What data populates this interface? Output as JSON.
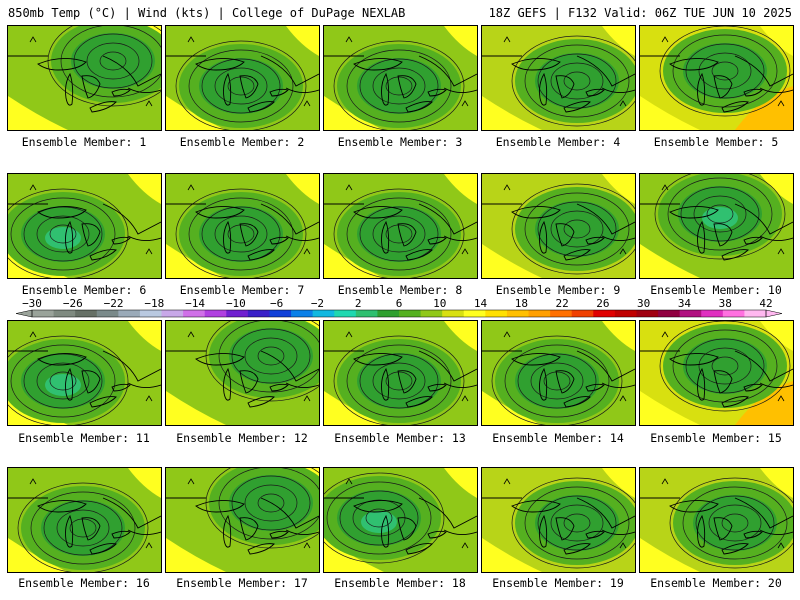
{
  "header": {
    "left": "850mb Temp (°C) | Wind (kts) | College of DuPage NEXLAB",
    "right": "18Z GEFS | F132 Valid: 06Z TUE JUN 10 2025"
  },
  "panels": [
    {
      "label": "Ensemble Member: 1",
      "pattern": "ne-low"
    },
    {
      "label": "Ensemble Member: 2",
      "pattern": "lakes-low"
    },
    {
      "label": "Ensemble Member: 3",
      "pattern": "lakes-low"
    },
    {
      "label": "Ensemble Member: 4",
      "pattern": "east-low"
    },
    {
      "label": "Ensemble Member: 5",
      "pattern": "warm-sw"
    },
    {
      "label": "Ensemble Member: 6",
      "pattern": "west-low"
    },
    {
      "label": "Ensemble Member: 7",
      "pattern": "lakes-low"
    },
    {
      "label": "Ensemble Member: 8",
      "pattern": "lakes-low"
    },
    {
      "label": "Ensemble Member: 9",
      "pattern": "east-low"
    },
    {
      "label": "Ensemble Member: 10",
      "pattern": "north-low"
    },
    {
      "label": "Ensemble Member: 11",
      "pattern": "west-low"
    },
    {
      "label": "Ensemble Member: 12",
      "pattern": "ne-low"
    },
    {
      "label": "Ensemble Member: 13",
      "pattern": "lakes-low"
    },
    {
      "label": "Ensemble Member: 14",
      "pattern": "lakes-low"
    },
    {
      "label": "Ensemble Member: 15",
      "pattern": "warm-sw"
    },
    {
      "label": "Ensemble Member: 16",
      "pattern": "lakes-low"
    },
    {
      "label": "Ensemble Member: 17",
      "pattern": "ne-low"
    },
    {
      "label": "Ensemble Member: 18",
      "pattern": "deep-low"
    },
    {
      "label": "Ensemble Member: 19",
      "pattern": "east-low"
    },
    {
      "label": "Ensemble Member: 20",
      "pattern": "east-low"
    }
  ],
  "colorbar": {
    "ticks": [
      "-30",
      "-26",
      "-22",
      "-18",
      "-14",
      "-10",
      "-6",
      "-2",
      "2",
      "6",
      "10",
      "14",
      "18",
      "22",
      "26",
      "30",
      "34",
      "38",
      "42"
    ],
    "colors": [
      "#9aa39a",
      "#7f8a80",
      "#667066",
      "#7a8a8a",
      "#9aaab8",
      "#b9c9e0",
      "#c8a8e8",
      "#d070e8",
      "#b040e0",
      "#7020d0",
      "#3a20c8",
      "#1040d8",
      "#0a80e8",
      "#10b8e0",
      "#20d8b0",
      "#30c070",
      "#30a030",
      "#55b020",
      "#90c818",
      "#d8e010",
      "#ffff20",
      "#ffe000",
      "#ffc000",
      "#ffa000",
      "#ff7000",
      "#f04000",
      "#e00000",
      "#c00000",
      "#a00010",
      "#900040",
      "#b01080",
      "#e030c0",
      "#ff70e0",
      "#ffb8f0"
    ]
  }
}
